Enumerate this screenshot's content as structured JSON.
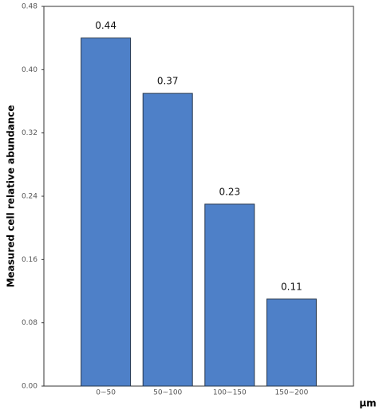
{
  "chart_data": {
    "type": "bar",
    "x_label": "μm",
    "y_label": "Measured cell relative abundance",
    "categories": [
      "0~50",
      "50~100",
      "100~150",
      "150~200"
    ],
    "values": [
      0.44,
      0.37,
      0.23,
      0.11
    ],
    "color": "#4e80c8",
    "ylim": [
      0,
      0.48
    ],
    "yticks": [
      {
        "value": 0,
        "label": "0.00"
      },
      {
        "value": 0.08,
        "label": "0.08"
      },
      {
        "value": 0.16,
        "label": "0.16"
      },
      {
        "value": 0.24,
        "label": "0.24"
      },
      {
        "value": 0.32,
        "label": "0.32"
      },
      {
        "value": 0.4,
        "label": "0.40"
      },
      {
        "value": 0.48,
        "label": "0.48"
      }
    ],
    "grid": false
  }
}
